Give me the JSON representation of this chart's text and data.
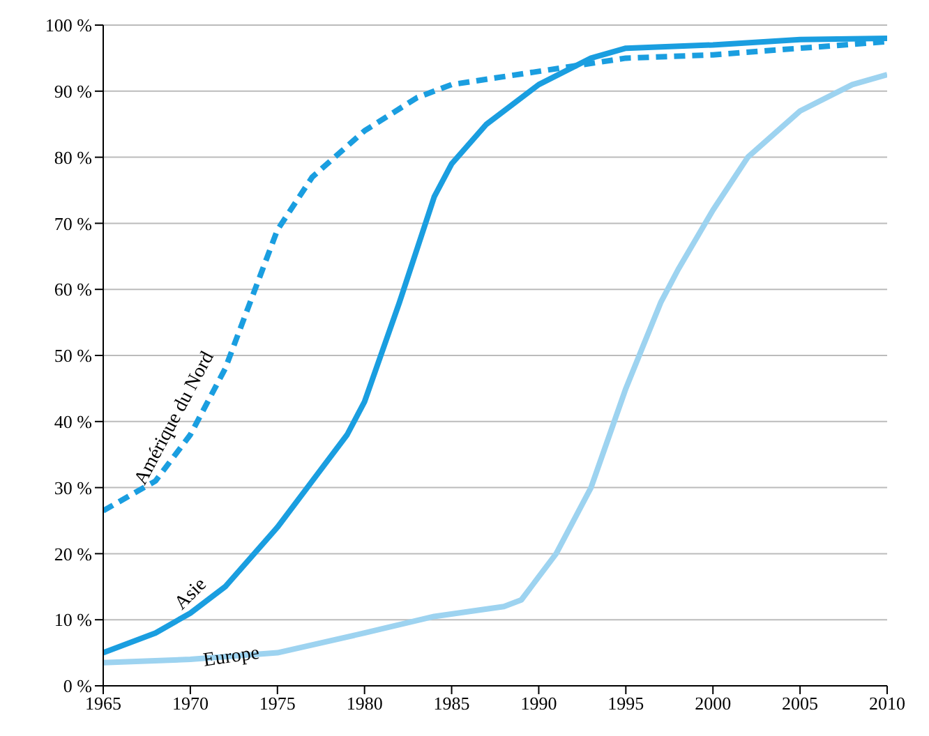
{
  "chart_data": {
    "type": "line",
    "xlim": [
      1965,
      2010
    ],
    "xticks": [
      1965,
      1970,
      1975,
      1980,
      1985,
      1990,
      1995,
      2000,
      2005,
      2010
    ],
    "ylim": [
      0,
      100
    ],
    "yticks": [
      {
        "value": 0,
        "label": "0 %"
      },
      {
        "value": 10,
        "label": "10 %"
      },
      {
        "value": 20,
        "label": "20 %"
      },
      {
        "value": 30,
        "label": "30 %"
      },
      {
        "value": 40,
        "label": "40 %"
      },
      {
        "value": 50,
        "label": "50 %"
      },
      {
        "value": 60,
        "label": "60 %"
      },
      {
        "value": 70,
        "label": "70 %"
      },
      {
        "value": 80,
        "label": "80 %"
      },
      {
        "value": 90,
        "label": "90 %"
      },
      {
        "value": 100,
        "label": "100 %"
      }
    ],
    "grid": "y",
    "legend": false,
    "marker": "none",
    "series": [
      {
        "name": "Amérique du Nord",
        "color": "#1a9ee0",
        "line_style": "dashed",
        "x": [
          1965,
          1968,
          1970,
          1972,
          1974,
          1975,
          1977,
          1980,
          1983,
          1985,
          1990,
          1995,
          2000,
          2005,
          2010
        ],
        "values": [
          26.5,
          31,
          38,
          48,
          62,
          69,
          77,
          84,
          89,
          91,
          93,
          95,
          95.5,
          96.5,
          97.5
        ]
      },
      {
        "name": "Asie",
        "color": "#1a9ee0",
        "line_style": "solid",
        "x": [
          1965,
          1968,
          1970,
          1972,
          1975,
          1977,
          1979,
          1980,
          1982,
          1984,
          1985,
          1987,
          1990,
          1993,
          1995,
          2000,
          2005,
          2010
        ],
        "values": [
          5,
          8,
          11,
          15,
          24,
          31,
          38,
          43,
          58,
          74,
          79,
          85,
          91,
          95,
          96.5,
          97,
          97.8,
          98
        ]
      },
      {
        "name": "Europe",
        "color": "#9dd3f0",
        "line_style": "solid",
        "x": [
          1965,
          1970,
          1975,
          1980,
          1984,
          1988,
          1989,
          1991,
          1993,
          1995,
          1997,
          1998,
          2000,
          2002,
          2005,
          2008,
          2010
        ],
        "values": [
          3.5,
          4,
          5,
          8,
          10.5,
          12,
          13,
          20,
          30,
          45,
          58,
          63,
          72,
          80,
          87,
          91,
          92.5
        ]
      }
    ]
  }
}
